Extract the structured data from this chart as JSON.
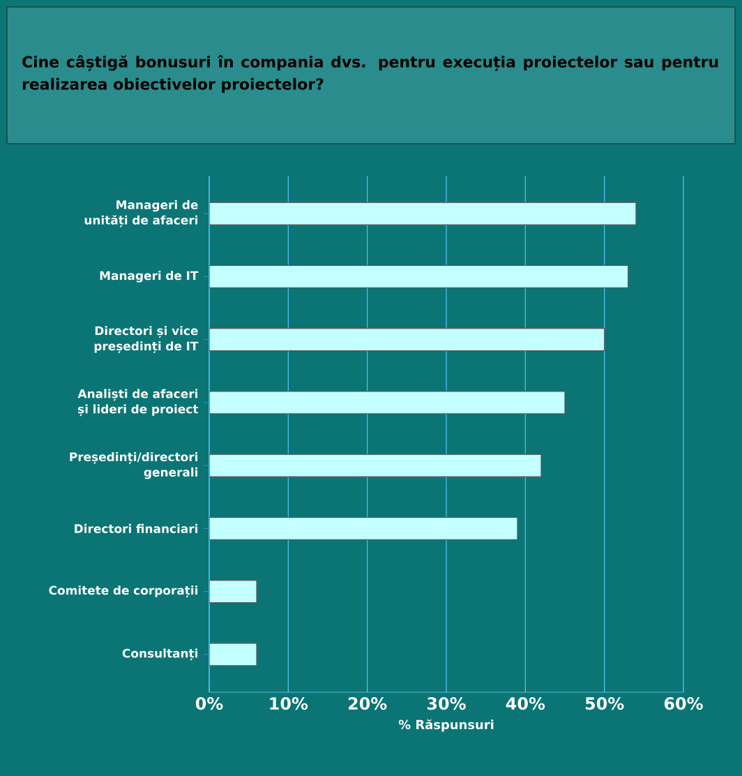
{
  "chart_data": {
    "type": "bar",
    "orientation": "horizontal",
    "title": "Cine câștigă bonusuri în compania dvs. pentru execuția proiectelor sau pentru realizarea obiectivelor proiectelor?",
    "categories": [
      "Manageri de unități de afaceri",
      "Manageri de IT",
      "Directori și vice președinți de IT",
      "Analiști de afaceri și lideri de proiect",
      "Președinți/directori generali",
      "Directori financiari",
      "Comitete de corporații",
      "Consultanți"
    ],
    "values": [
      54,
      53,
      50,
      45,
      42,
      39,
      6,
      6
    ],
    "color": "#c4ffff",
    "xlabel": "% Răspunsuri",
    "xlim": [
      0,
      60
    ],
    "xticks": [
      {
        "value": 0,
        "label": "0%"
      },
      {
        "value": 10,
        "label": "10%"
      },
      {
        "value": 20,
        "label": "20%"
      },
      {
        "value": 30,
        "label": "30%"
      },
      {
        "value": 40,
        "label": "40%"
      },
      {
        "value": 50,
        "label": "50%"
      },
      {
        "value": 60,
        "label": "60%"
      }
    ],
    "grid": "x"
  }
}
